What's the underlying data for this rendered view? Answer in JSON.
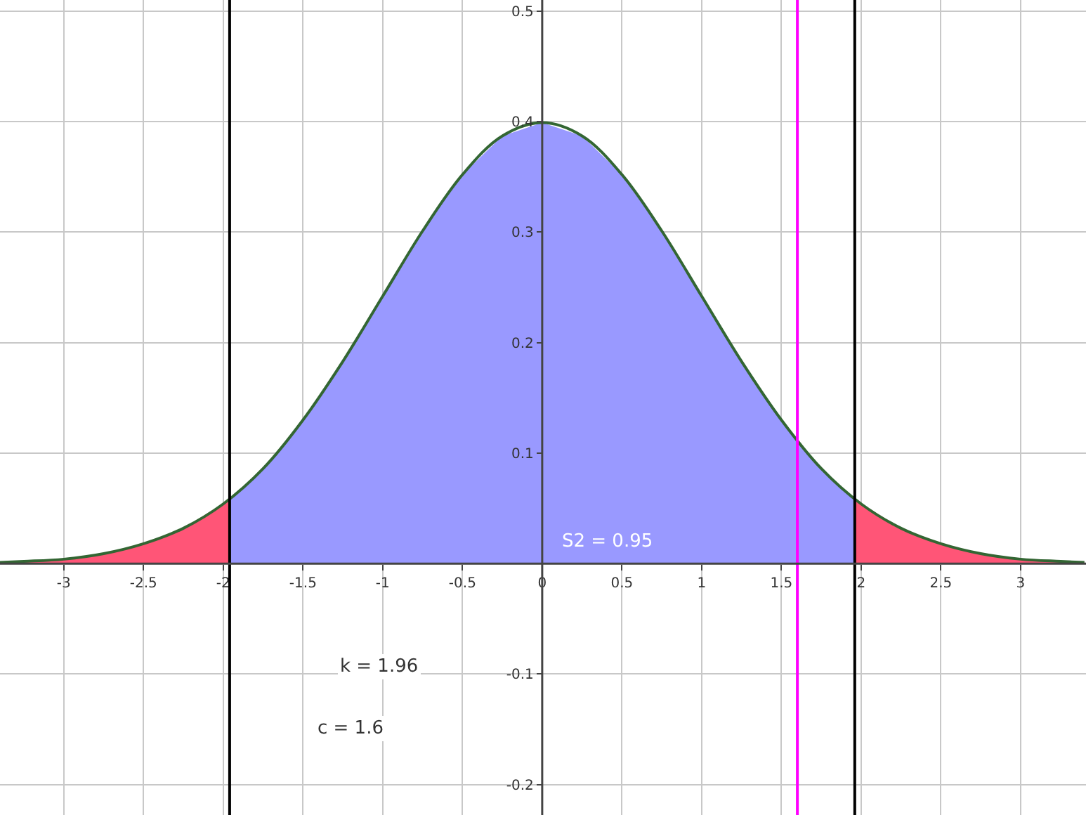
{
  "chart_data": {
    "type": "area",
    "xlim": [
      -3.4,
      3.41
    ],
    "ylim": [
      -0.2275,
      0.51
    ],
    "xticks": [
      -3,
      -2.5,
      -2,
      -1.5,
      -1,
      -0.5,
      0,
      0.5,
      1,
      1.5,
      2,
      2.5,
      3
    ],
    "yticks": [
      -0.2,
      -0.1,
      {
        "value": 0,
        "label": null
      },
      0.1,
      0.2,
      0.3,
      0.4,
      0.5
    ],
    "grid": true,
    "series": [
      {
        "color": "#ff5577",
        "x": [
          -3.4,
          -3.25,
          -3,
          -2.75,
          -2.5,
          -2.25,
          -1.96
        ],
        "values": [
          0.001,
          0.002,
          0.004,
          0.009,
          0.018,
          0.032,
          0.058
        ]
      },
      {
        "color": "#9999ff",
        "x": [
          -1.96,
          -1.75,
          -1.5,
          -1.25,
          -1,
          -0.75,
          -0.5,
          -0.25,
          0,
          0.25,
          0.5,
          0.75,
          1,
          1.25,
          1.5,
          1.75,
          1.96
        ],
        "values": [
          0.058,
          0.086,
          0.13,
          0.183,
          0.242,
          0.301,
          0.352,
          0.387,
          0.399,
          0.387,
          0.352,
          0.301,
          0.242,
          0.183,
          0.13,
          0.086,
          0.058
        ]
      },
      {
        "color": "#ff5577",
        "x": [
          1.96,
          2.25,
          2.5,
          2.75,
          3,
          3.25,
          3.4
        ],
        "values": [
          0.058,
          0.032,
          0.018,
          0.009,
          0.004,
          0.002,
          0.001
        ]
      },
      {
        "type": "line",
        "color": "#336633",
        "x": [
          -3.4,
          -3.25,
          -3,
          -2.75,
          -2.5,
          -2.25,
          -2,
          -1.75,
          -1.5,
          -1.25,
          -1,
          -0.75,
          -0.5,
          -0.25,
          0,
          0.25,
          0.5,
          0.75,
          1,
          1.25,
          1.5,
          1.75,
          2,
          2.25,
          2.5,
          2.75,
          3,
          3.25,
          3.4
        ],
        "values": [
          0.001,
          0.002,
          0.004,
          0.009,
          0.018,
          0.032,
          0.054,
          0.086,
          0.13,
          0.183,
          0.242,
          0.301,
          0.352,
          0.387,
          0.399,
          0.387,
          0.352,
          0.301,
          0.242,
          0.183,
          0.13,
          0.086,
          0.054,
          0.032,
          0.018,
          0.009,
          0.004,
          0.002,
          0.001
        ]
      }
    ],
    "ref_lines": [
      {
        "axis": "x",
        "value": -1.96,
        "color": "#000000"
      },
      {
        "axis": "x",
        "value": 1.96,
        "color": "#000000"
      },
      {
        "axis": "x",
        "value": 1.6,
        "color": "#ff00ff"
      }
    ],
    "annotations": [
      "S2 = 0.95",
      "k = 1.96",
      "c = 1.6"
    ]
  }
}
